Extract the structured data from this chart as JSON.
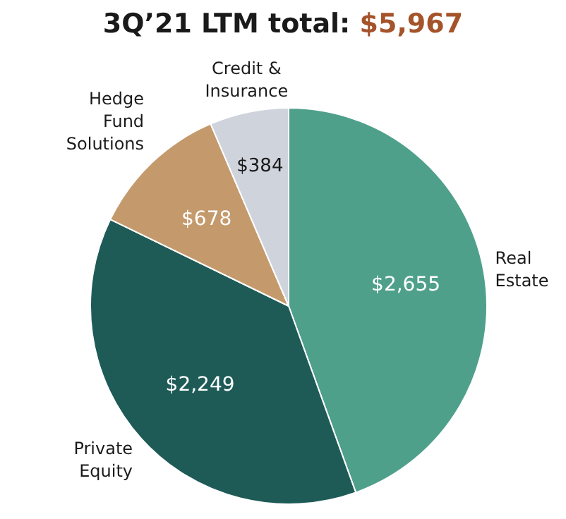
{
  "chart_data": {
    "type": "pie",
    "title": "3Q’21 LTM total: $5,967",
    "categories": [
      "Real Estate",
      "Private Equity",
      "Hedge Fund Solutions",
      "Credit & Insurance"
    ],
    "values": [
      2655,
      2249,
      678,
      384
    ],
    "colors": [
      "#4fa08b",
      "#1e5b57",
      "#c49a6c",
      "#cfd3dc"
    ],
    "value_labels": [
      "$2,655",
      "$2,249",
      "$678",
      "$384"
    ],
    "legend": false
  }
}
